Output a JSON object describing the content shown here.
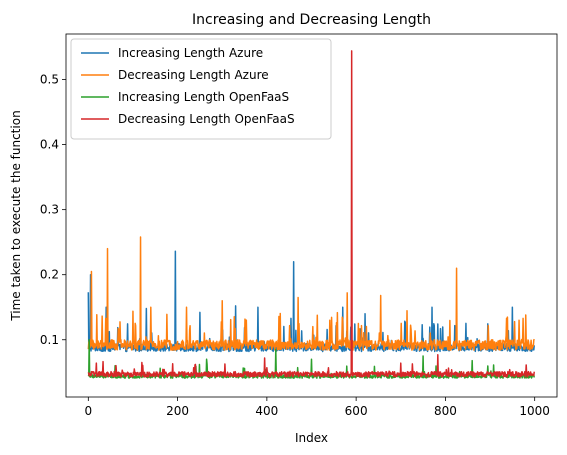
{
  "chart_data": {
    "type": "line",
    "title": "Increasing and Decreasing Length",
    "xlabel": "Index",
    "ylabel": "Time taken to execute the function",
    "xlim": [
      -50,
      1050
    ],
    "ylim": [
      0.012,
      0.57
    ],
    "x_ticks": [
      0,
      200,
      400,
      600,
      800,
      1000
    ],
    "x_tick_labels": [
      "0",
      "200",
      "400",
      "600",
      "800",
      "1000"
    ],
    "y_ticks": [
      0.1,
      0.2,
      0.3,
      0.4,
      0.5
    ],
    "y_tick_labels": [
      "0.1",
      "0.2",
      "0.3",
      "0.4",
      "0.5"
    ],
    "grid": false,
    "legend_position": "top-left",
    "n_points": 1000,
    "series": [
      {
        "name": "Increasing Length Azure",
        "color": "#1f77b4",
        "baseline": 0.088,
        "noise": 0.006,
        "spike_prob": 0.06,
        "spike_max": 0.04,
        "peaks": [
          [
            0,
            0.173
          ],
          [
            5,
            0.2
          ],
          [
            195,
            0.236
          ],
          [
            460,
            0.22
          ],
          [
            40,
            0.15
          ],
          [
            130,
            0.148
          ],
          [
            250,
            0.142
          ],
          [
            330,
            0.152
          ],
          [
            380,
            0.15
          ],
          [
            570,
            0.15
          ],
          [
            620,
            0.14
          ],
          [
            770,
            0.15
          ],
          [
            950,
            0.15
          ]
        ]
      },
      {
        "name": "Decreasing Length Azure",
        "color": "#ff7f0e",
        "baseline": 0.092,
        "noise": 0.008,
        "spike_prob": 0.08,
        "spike_max": 0.05,
        "peaks": [
          [
            7,
            0.205
          ],
          [
            43,
            0.24
          ],
          [
            117,
            0.258
          ],
          [
            140,
            0.15
          ],
          [
            220,
            0.15
          ],
          [
            300,
            0.16
          ],
          [
            470,
            0.165
          ],
          [
            580,
            0.172
          ],
          [
            655,
            0.168
          ],
          [
            825,
            0.21
          ],
          [
            965,
            0.13
          ],
          [
            980,
            0.138
          ]
        ]
      },
      {
        "name": "Increasing Length OpenFaaS",
        "color": "#2ca02c",
        "baseline": 0.044,
        "noise": 0.003,
        "spike_prob": 0.03,
        "spike_max": 0.02,
        "peaks": [
          [
            2,
            0.1
          ],
          [
            60,
            0.06
          ],
          [
            265,
            0.07
          ],
          [
            420,
            0.085
          ],
          [
            500,
            0.07
          ],
          [
            750,
            0.075
          ],
          [
            860,
            0.068
          ]
        ]
      },
      {
        "name": "Decreasing Length OpenFaaS",
        "color": "#d62728",
        "baseline": 0.047,
        "noise": 0.004,
        "spike_prob": 0.03,
        "spike_max": 0.018,
        "peaks": [
          [
            590,
            0.544
          ],
          [
            395,
            0.072
          ],
          [
            783,
            0.077
          ],
          [
            120,
            0.065
          ],
          [
            240,
            0.062
          ],
          [
            700,
            0.064
          ]
        ]
      }
    ]
  }
}
